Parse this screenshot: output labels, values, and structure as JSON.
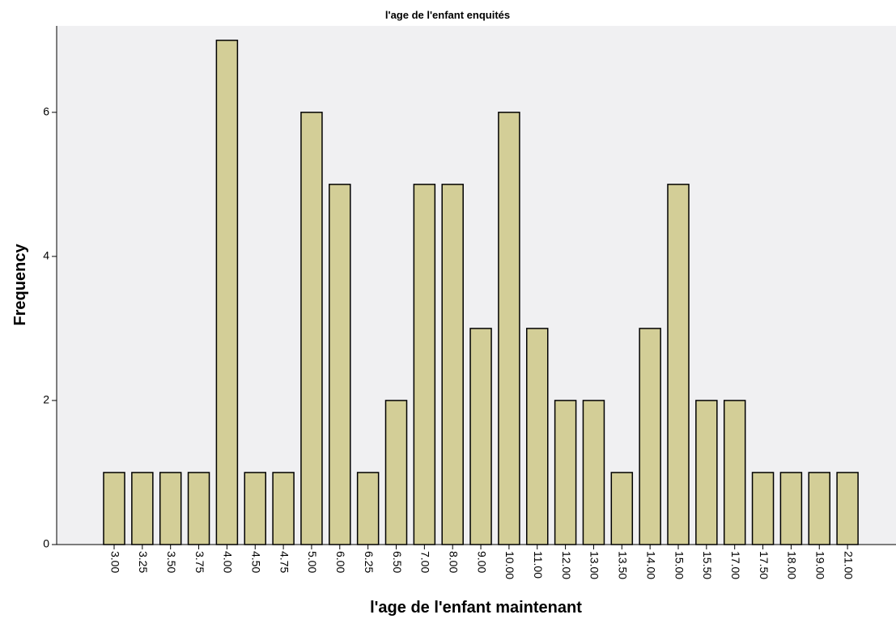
{
  "chart_data": {
    "type": "bar",
    "title": "l'age de l'enfant enquités",
    "xlabel": "l'age de l'enfant maintenant",
    "ylabel": "Frequency",
    "categories": [
      "3.00",
      "3.25",
      "3.50",
      "3.75",
      "4.00",
      "4.50",
      "4.75",
      "5.00",
      "6.00",
      "6.25",
      "6.50",
      "7.00",
      "8.00",
      "9.00",
      "10.00",
      "11.00",
      "12.00",
      "13.00",
      "13.50",
      "14.00",
      "15.00",
      "15.50",
      "17.00",
      "17.50",
      "18.00",
      "19.00",
      "21.00"
    ],
    "values": [
      1,
      1,
      1,
      1,
      7,
      1,
      1,
      6,
      5,
      1,
      2,
      5,
      5,
      3,
      6,
      3,
      2,
      2,
      1,
      3,
      5,
      2,
      2,
      1,
      1,
      1,
      1
    ],
    "ylim": [
      0,
      7.2
    ],
    "yticks": [
      "0",
      "2",
      "4",
      "6"
    ],
    "grid": false,
    "legend": "none",
    "colors": {
      "bar_fill": "#d3ce97",
      "bar_stroke": "#000000",
      "plot_background": "#f0f0f2",
      "page_background": "#ffffff"
    }
  }
}
